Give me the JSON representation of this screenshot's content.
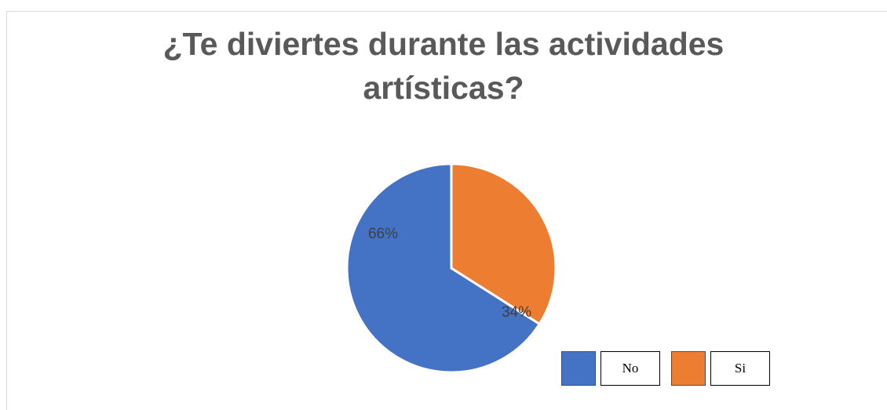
{
  "chart_data": {
    "type": "pie",
    "title_lines": [
      "¿Te diviertes durante las actividades",
      "artísticas?"
    ],
    "categories": [
      "No",
      "Si"
    ],
    "values": [
      66,
      34
    ],
    "data_labels": [
      "66%",
      "34%"
    ],
    "colors": [
      "#4472c4",
      "#ed7d31"
    ],
    "legend": {
      "position": "bottom-right",
      "entries": [
        "No",
        "Si"
      ]
    }
  }
}
